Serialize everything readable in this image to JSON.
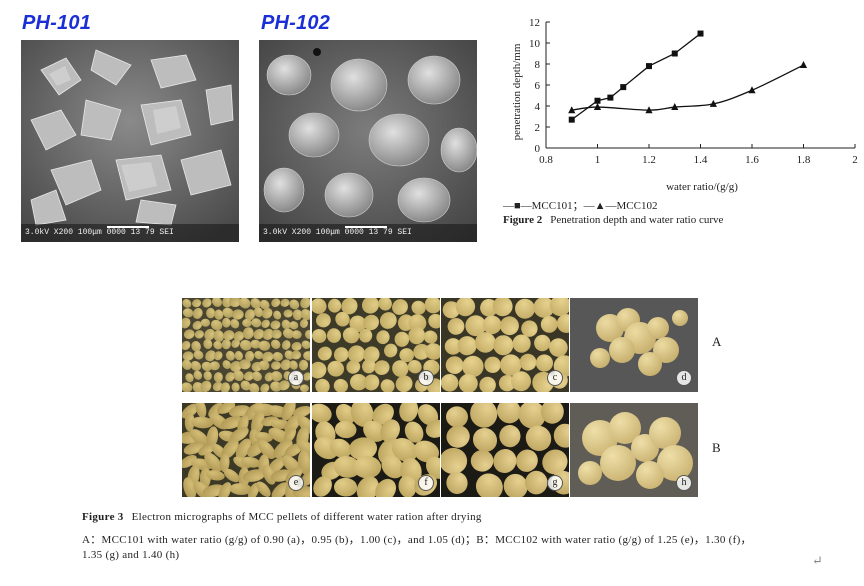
{
  "sem_images": [
    {
      "title": "PH-101",
      "info": "3.0kV    X200   100μm  0000 13 79 SEI"
    },
    {
      "title": "PH-102",
      "info": "3.0kV    X200   100μm  0000 13 79 SEI"
    }
  ],
  "chart_data": {
    "type": "line",
    "xlabel": "water ratio/(g/g)",
    "ylabel": "penetration depth/mm",
    "xlim": [
      0.8,
      2
    ],
    "ylim": [
      0,
      12
    ],
    "xticks": [
      "0.8",
      "1",
      "1.2",
      "1.4",
      "1.6",
      "1.8",
      "2"
    ],
    "yticks": [
      "0",
      "2",
      "4",
      "6",
      "8",
      "10",
      "12"
    ],
    "series": [
      {
        "name": "MCC101",
        "marker": "square",
        "x": [
          0.9,
          1.0,
          1.05,
          1.1,
          1.2,
          1.3,
          1.4
        ],
        "y": [
          2.7,
          4.5,
          4.8,
          5.8,
          7.8,
          9.0,
          10.9
        ]
      },
      {
        "name": "MCC102",
        "marker": "triangle",
        "x": [
          0.9,
          1.0,
          1.2,
          1.3,
          1.45,
          1.6,
          1.8
        ],
        "y": [
          3.6,
          3.9,
          3.6,
          3.9,
          4.2,
          5.5,
          7.9
        ]
      }
    ],
    "legend": "—■—MCC101；—▲—MCC102",
    "grid": false
  },
  "figure2": {
    "label": "Figure 2",
    "text": "Penetration depth and water ratio curve"
  },
  "figure3": {
    "row_labels": [
      "A",
      "B"
    ],
    "panel_labels": [
      "a",
      "b",
      "c",
      "d",
      "e",
      "f",
      "g",
      "h"
    ],
    "label": "Figure 3",
    "title": "Electron micrographs of MCC pellets of different water ration after drying",
    "caption_line1": "A：MCC101 with water ratio (g/g) of 0.90 (a)，0.95 (b)，1.00 (c)，and 1.05 (d)；B：MCC102 with water ratio (g/g) of 1.25 (e)，1.30 (f)，",
    "caption_line2": "1.35 (g) and 1.40 (h)"
  },
  "return_mark": "↵"
}
